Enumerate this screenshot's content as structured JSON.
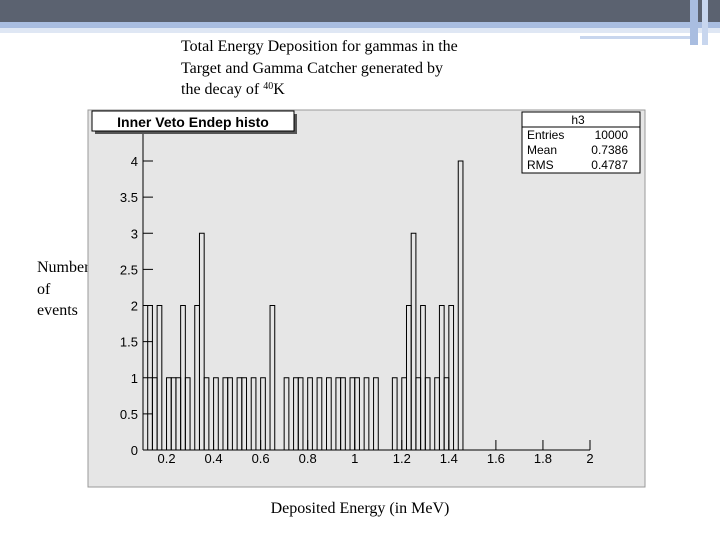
{
  "chart_data": {
    "type": "histogram",
    "title_lines": [
      "Total Energy Deposition for gammas in the",
      "Target and Gamma Catcher generated by",
      "the decay of"
    ],
    "isotope_mass": "40",
    "isotope_symbol": "K",
    "y_label_lines": [
      "Number",
      "of",
      "events"
    ],
    "x_label": "Deposited Energy (in MeV)",
    "histo_title": "Inner Veto Endep histo",
    "stats": {
      "name": "h3",
      "labels": [
        "Entries",
        "Mean",
        "RMS"
      ],
      "values": [
        10000,
        0.7386,
        0.4787
      ]
    },
    "bins": [
      0.1,
      0.12,
      0.14,
      0.16,
      0.18,
      0.2,
      0.22,
      0.24,
      0.26,
      0.28,
      0.3,
      0.32,
      0.34,
      0.36,
      0.38,
      0.4,
      0.42,
      0.44,
      0.46,
      0.48,
      0.5,
      0.52,
      0.54,
      0.56,
      0.58,
      0.6,
      0.62,
      0.64,
      0.66,
      0.68,
      0.7,
      0.72,
      0.74,
      0.76,
      0.78,
      0.8,
      0.82,
      0.84,
      0.86,
      0.88,
      0.9,
      0.92,
      0.94,
      0.96,
      0.98,
      1.0,
      1.02,
      1.04,
      1.06,
      1.08,
      1.1,
      1.12,
      1.14,
      1.16,
      1.18,
      1.2,
      1.22,
      1.24,
      1.26,
      1.28,
      1.3,
      1.32,
      1.34,
      1.36,
      1.38,
      1.4,
      1.42,
      1.44,
      1.46,
      1.48,
      1.5,
      1.52,
      1.54,
      1.56,
      1.58,
      1.6,
      1.62,
      1.64,
      1.66,
      1.68,
      1.7,
      1.72,
      1.74,
      1.76,
      1.78,
      1.8,
      1.82,
      1.84,
      1.86,
      1.88,
      1.9,
      1.92,
      1.94,
      1.96,
      1.98,
      2.0
    ],
    "counts": [
      0,
      2,
      1,
      2,
      0,
      1,
      1,
      1,
      2,
      1,
      0,
      2,
      3,
      1,
      0,
      1,
      0,
      1,
      1,
      0,
      1,
      1,
      0,
      1,
      0,
      1,
      0,
      2,
      0,
      0,
      1,
      0,
      1,
      1,
      0,
      1,
      0,
      1,
      0,
      1,
      0,
      1,
      1,
      0,
      1,
      1,
      0,
      1,
      0,
      1,
      0,
      0,
      0,
      1,
      0,
      1,
      2,
      3,
      1,
      2,
      1,
      0,
      1,
      2,
      1,
      2,
      0,
      4,
      0,
      0,
      0,
      0,
      0,
      0,
      0,
      0,
      0,
      0,
      0,
      0,
      0,
      0,
      0,
      0,
      0,
      0,
      0,
      0,
      0,
      0,
      0,
      0,
      0,
      0,
      0
    ],
    "color": "#000000",
    "xlim": [
      0.1,
      2.0
    ],
    "xticks": [
      0.2,
      0.4,
      0.6,
      0.8,
      1,
      1.2,
      1.4,
      1.6,
      1.8,
      2
    ],
    "ylim": [
      0,
      4.6
    ],
    "yticks": [
      0,
      0.5,
      1,
      1.5,
      2,
      2.5,
      3,
      3.5,
      4
    ]
  }
}
